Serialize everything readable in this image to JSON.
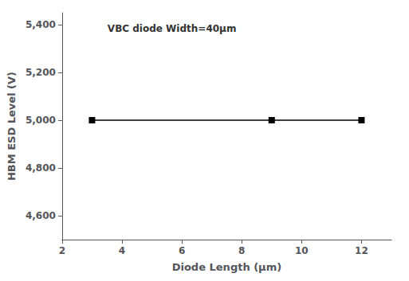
{
  "chart_data": {
    "type": "line",
    "x": [
      3,
      9,
      12
    ],
    "values": [
      5000,
      5000,
      5000
    ],
    "xlabel": "Diode Length (μm)",
    "ylabel": "HBM ESD Level (V)",
    "annotation": "VBC diode Width=40μm",
    "xlim": [
      2,
      13
    ],
    "ylim": [
      4500,
      5450
    ],
    "xticks": [
      2,
      4,
      6,
      8,
      10,
      12
    ],
    "yticks": [
      4600,
      4800,
      5000,
      5200,
      5400
    ],
    "color": "#000000",
    "marker": "square",
    "grid": false
  }
}
